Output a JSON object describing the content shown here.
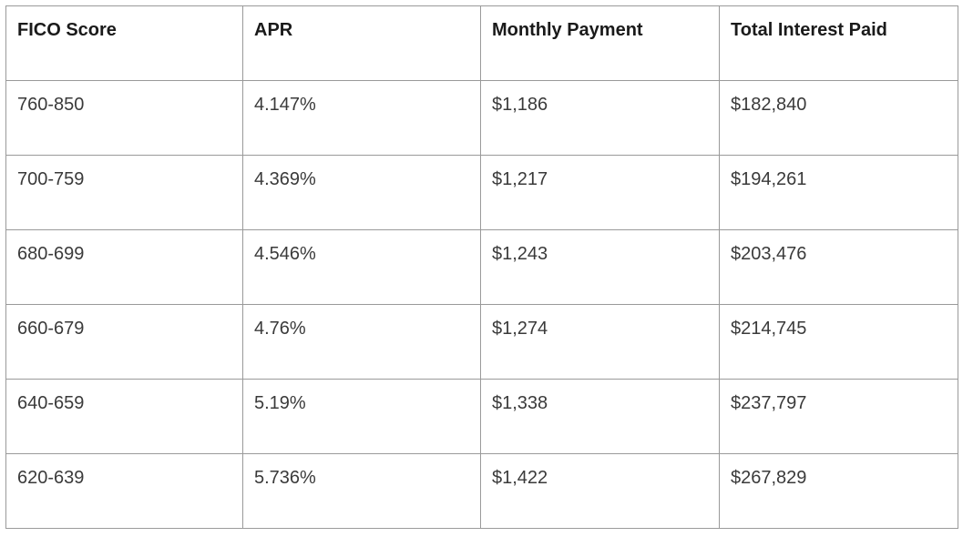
{
  "table": {
    "columns": [
      "FICO Score",
      "APR",
      "Monthly Payment",
      "Total Interest Paid"
    ],
    "rows": [
      [
        "760-850",
        "4.147%",
        "$1,186",
        "$182,840"
      ],
      [
        "700-759",
        "4.369%",
        "$1,217",
        "$194,261"
      ],
      [
        "680-699",
        "4.546%",
        "$1,243",
        "$203,476"
      ],
      [
        "660-679",
        "4.76%",
        "$1,274",
        "$214,745"
      ],
      [
        "640-659",
        "5.19%",
        "$1,338",
        "$237,797"
      ],
      [
        "620-639",
        "5.736%",
        "$1,422",
        "$267,829"
      ]
    ]
  }
}
